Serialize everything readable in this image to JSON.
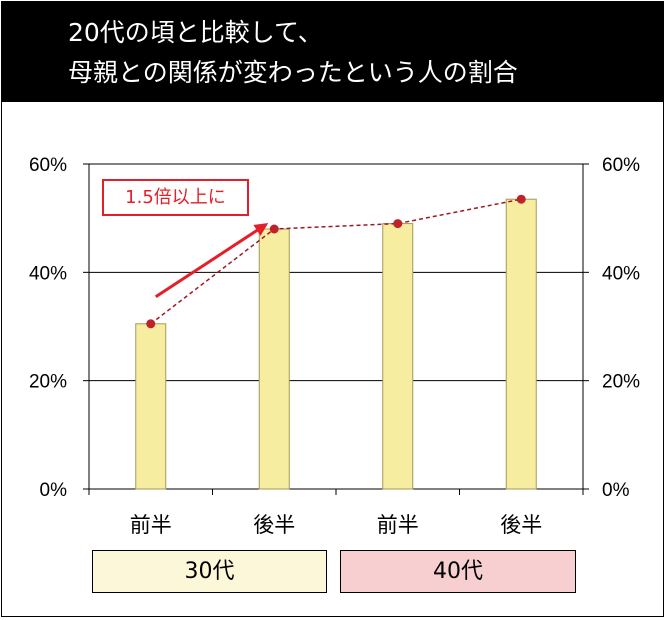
{
  "title": {
    "line1": "20代の頃と比較して、",
    "line2": "母親との関係が変わったという人の割合"
  },
  "chart_data": {
    "type": "bar",
    "categories": [
      "前半",
      "後半",
      "前半",
      "後半"
    ],
    "values": [
      30.5,
      48,
      49,
      53.5
    ],
    "line_values": [
      30.5,
      48,
      49,
      53.5
    ],
    "ylim": [
      0,
      60
    ],
    "yticks": [
      "0%",
      "20%",
      "40%",
      "60%"
    ],
    "ytick_values": [
      0,
      20,
      40,
      60
    ],
    "groups": [
      {
        "label": "30代",
        "categories": [
          0,
          1
        ]
      },
      {
        "label": "40代",
        "categories": [
          2,
          3
        ]
      }
    ],
    "annotation": "1.5倍以上に",
    "grid": true,
    "secondary_axis": true
  },
  "colors": {
    "bar_fill": "#f7eda1",
    "bar_stroke": "#a3985a",
    "line": "#9b1a22",
    "marker": "#c0222c",
    "arrow": "#e3202a",
    "group_30": "#fdf7d9",
    "group_40": "#f8cfd1"
  }
}
